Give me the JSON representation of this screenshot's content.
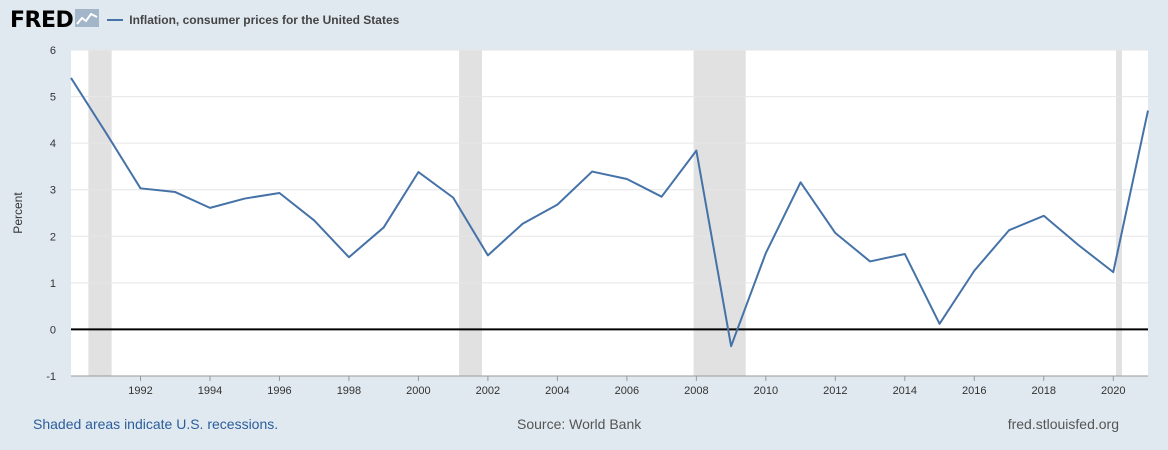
{
  "header": {
    "logo_text": "FRED",
    "logo_icon": "chart-line-icon",
    "legend_label": "Inflation, consumer prices for the United States"
  },
  "chart_data": {
    "type": "line",
    "title": "",
    "xlabel": "",
    "ylabel": "Percent",
    "xlim": [
      1990,
      2021
    ],
    "ylim": [
      -1,
      6
    ],
    "yticks": [
      "-1",
      "0",
      "1",
      "2",
      "3",
      "4",
      "5",
      "6"
    ],
    "xticks": [
      "1992",
      "1994",
      "1996",
      "1998",
      "2000",
      "2002",
      "2004",
      "2006",
      "2008",
      "2010",
      "2012",
      "2014",
      "2016",
      "2018",
      "2020"
    ],
    "series": [
      {
        "name": "Inflation, consumer prices for the United States",
        "color": "#4572a7",
        "x": [
          1990,
          1991,
          1992,
          1993,
          1994,
          1995,
          1996,
          1997,
          1998,
          1999,
          2000,
          2001,
          2002,
          2003,
          2004,
          2005,
          2006,
          2007,
          2008,
          2009,
          2010,
          2011,
          2012,
          2013,
          2014,
          2015,
          2016,
          2017,
          2018,
          2019,
          2020,
          2021
        ],
        "y": [
          5.4,
          4.23,
          3.03,
          2.95,
          2.61,
          2.81,
          2.93,
          2.34,
          1.55,
          2.19,
          3.38,
          2.83,
          1.59,
          2.27,
          2.68,
          3.39,
          3.23,
          2.85,
          3.84,
          -0.36,
          1.64,
          3.16,
          2.07,
          1.46,
          1.62,
          0.12,
          1.26,
          2.13,
          2.44,
          1.81,
          1.23,
          4.7
        ]
      }
    ],
    "recessions": [
      [
        1990.5,
        1991.17
      ],
      [
        2001.17,
        2001.83
      ],
      [
        2007.92,
        2009.42
      ],
      [
        2020.08,
        2020.25
      ]
    ],
    "zero_line": 0,
    "grid": true,
    "colors": {
      "line": "#4572a7",
      "recession": "#e1e1e1",
      "grid": "#e6e6e6",
      "plot_bg": "#ffffff",
      "zero_line": "#000000"
    }
  },
  "footer": {
    "note": "Shaded areas indicate U.S. recessions.",
    "source": "Source: World Bank",
    "site": "fred.stlouisfed.org"
  }
}
